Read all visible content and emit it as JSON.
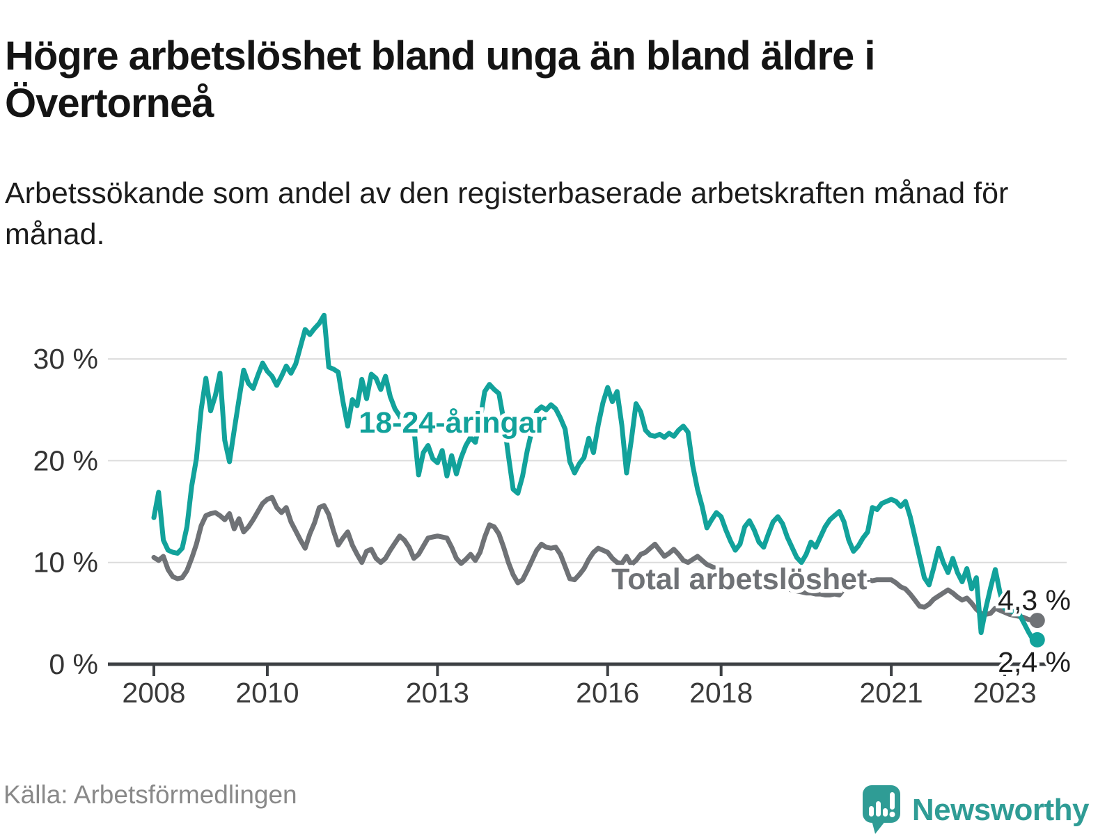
{
  "title": "Högre arbetslöshet bland unga än bland äldre i Övertorneå",
  "subtitle": "Arbetssökande som andel av den registerbaserade arbetskraften månad för månad.",
  "source": "Källa: Arbetsförmedlingen",
  "brand": {
    "name": "Newsworthy",
    "color": "#2f9c95",
    "icon": "speech-bubble-bar-chart-icon"
  },
  "colors": {
    "youth_line": "#12a29b",
    "total_line": "#6f7276",
    "axis": "#3d4044",
    "grid": "#dcdcdc",
    "tick_label": "#3a3a3a",
    "value_label": "#1e1e1e",
    "source_text": "#898989"
  },
  "chart_data": {
    "type": "line",
    "unit": "%",
    "frequency": "monthly",
    "x_start": {
      "year": 2008,
      "month": 1
    },
    "x_end": {
      "year": 2023,
      "month": 7
    },
    "x_ticks": [
      2008,
      2010,
      2013,
      2016,
      2018,
      2021,
      2023
    ],
    "y_ticks": [
      0,
      10,
      20,
      30
    ],
    "y_tick_suffix": " %",
    "ylim": [
      0,
      35.5
    ],
    "grid": "horizontal",
    "legend_position": "inline-labels",
    "series": [
      {
        "name": "18-24-åringar",
        "color": "#12a29b",
        "label_x": 2013.27,
        "label_y": 23.8,
        "end_label": "2,4 %",
        "end_value": 2.4,
        "values": [
          14.4,
          16.9,
          12.2,
          11.2,
          11.0,
          10.9,
          11.4,
          13.5,
          17.5,
          20.2,
          25.0,
          28.1,
          24.9,
          26.4,
          28.6,
          22.0,
          19.9,
          23.0,
          26.0,
          28.9,
          27.6,
          27.1,
          28.4,
          29.6,
          28.8,
          28.3,
          27.4,
          28.3,
          29.3,
          28.6,
          29.5,
          31.2,
          32.9,
          32.4,
          33.0,
          33.5,
          34.3,
          29.2,
          29.0,
          28.7,
          25.8,
          23.4,
          26.0,
          25.4,
          28.0,
          26.1,
          28.5,
          28.1,
          27.0,
          28.3,
          26.3,
          25.1,
          24.4,
          23.4,
          23.8,
          23.2,
          18.6,
          20.8,
          21.5,
          20.2,
          19.8,
          21.0,
          18.5,
          20.5,
          18.7,
          20.3,
          21.5,
          22.3,
          21.8,
          24.0,
          26.8,
          27.5,
          27.0,
          26.6,
          24.0,
          20.5,
          17.2,
          16.8,
          18.5,
          21.0,
          23.0,
          24.9,
          25.3,
          25.0,
          25.5,
          25.1,
          24.2,
          23.1,
          19.9,
          18.8,
          19.7,
          20.3,
          22.2,
          20.8,
          23.5,
          25.7,
          27.2,
          25.8,
          26.8,
          23.5,
          18.8,
          22.0,
          25.6,
          24.8,
          23.0,
          22.5,
          22.4,
          22.6,
          22.3,
          22.7,
          22.4,
          23.0,
          23.4,
          22.8,
          19.5,
          17.2,
          15.5,
          13.4,
          14.2,
          14.9,
          14.5,
          13.2,
          12.1,
          11.2,
          11.8,
          13.5,
          14.1,
          13.2,
          12.0,
          11.5,
          12.8,
          14.0,
          14.5,
          13.8,
          12.5,
          11.5,
          10.5,
          10.0,
          10.8,
          12.0,
          11.5,
          12.5,
          13.5,
          14.2,
          14.6,
          15.0,
          14.0,
          12.2,
          11.1,
          11.6,
          12.4,
          13.0,
          15.4,
          15.2,
          15.8,
          16.0,
          16.2,
          16.0,
          15.5,
          16.0,
          14.5,
          12.5,
          10.5,
          8.5,
          7.8,
          9.5,
          11.4,
          10.0,
          9.0,
          10.4,
          9.0,
          8.1,
          9.4,
          7.4,
          8.5,
          3.1,
          5.5,
          7.5,
          9.3,
          7.0,
          5.5,
          5.3,
          5.1,
          5.0,
          4.1,
          3.2,
          2.4
        ]
      },
      {
        "name": "Total arbetslöshet",
        "color": "#6f7276",
        "label_x": 2018.32,
        "label_y": 8.4,
        "end_label": "4,3 %",
        "end_value": 4.3,
        "values": [
          10.5,
          10.2,
          10.6,
          9.3,
          8.6,
          8.4,
          8.5,
          9.2,
          10.4,
          11.8,
          13.6,
          14.6,
          14.8,
          14.9,
          14.6,
          14.2,
          14.8,
          13.3,
          14.3,
          13.0,
          13.5,
          14.2,
          15.0,
          15.8,
          16.2,
          16.4,
          15.4,
          14.9,
          15.4,
          14.0,
          13.1,
          12.2,
          11.4,
          12.8,
          13.9,
          15.4,
          15.6,
          14.7,
          13.1,
          11.7,
          12.4,
          13.0,
          11.7,
          10.8,
          10.0,
          11.1,
          11.3,
          10.4,
          10.0,
          10.4,
          11.2,
          11.9,
          12.6,
          12.2,
          11.5,
          10.4,
          10.8,
          11.6,
          12.4,
          12.5,
          12.6,
          12.5,
          12.4,
          11.5,
          10.4,
          9.9,
          10.3,
          10.8,
          10.2,
          11.0,
          12.5,
          13.7,
          13.5,
          12.8,
          11.5,
          10.0,
          8.8,
          8.0,
          8.3,
          9.2,
          10.2,
          11.2,
          11.8,
          11.5,
          11.4,
          11.5,
          10.8,
          9.6,
          8.4,
          8.3,
          8.8,
          9.4,
          10.3,
          11.0,
          11.4,
          11.2,
          11.0,
          10.4,
          10.0,
          9.9,
          10.6,
          9.8,
          10.2,
          10.8,
          11.0,
          11.4,
          11.8,
          11.2,
          10.6,
          10.9,
          11.3,
          10.8,
          10.2,
          10.0,
          10.3,
          10.6,
          10.2,
          9.8,
          9.6,
          9.4,
          9.2,
          9.0,
          8.8,
          8.6,
          8.5,
          8.4,
          8.3,
          8.2,
          8.0,
          7.9,
          7.8,
          7.7,
          7.6,
          7.5,
          7.4,
          7.3,
          7.2,
          7.1,
          7.0,
          7.0,
          6.9,
          6.9,
          6.8,
          6.8,
          6.9,
          6.8,
          7.4,
          8.6,
          8.8,
          8.6,
          8.4,
          8.3,
          8.2,
          8.3,
          8.3,
          8.3,
          8.3,
          8.0,
          7.6,
          7.4,
          6.9,
          6.3,
          5.7,
          5.6,
          5.9,
          6.4,
          6.7,
          7.0,
          7.3,
          7.0,
          6.6,
          6.3,
          6.5,
          6.0,
          5.4,
          5.0,
          4.9,
          5.0,
          5.5,
          5.3,
          5.1,
          4.9,
          4.8,
          4.7,
          4.6,
          4.4,
          4.3
        ]
      }
    ]
  }
}
